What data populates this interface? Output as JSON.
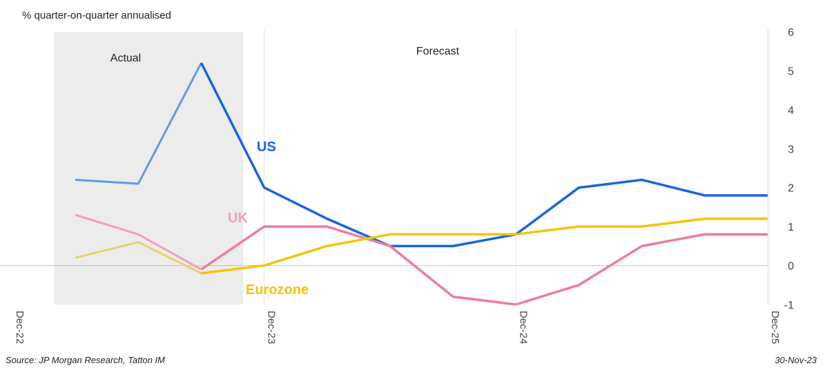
{
  "subtitle": "% quarter-on-quarter annualised",
  "source": "Source: JP Morgan Research, Tatton IM",
  "date_stamp": "30-Nov-23",
  "colors": {
    "us_actual": "#5b9be8",
    "us_forecast": "#1565e0",
    "uk_actual": "#f0a0b0",
    "uk_forecast": "#ee7d98",
    "eurozone_actual": "#e8d26a",
    "eurozone_forecast": "#f5c400",
    "shade": "#ececec",
    "zero_line": "#bfbfbf",
    "grid": "#e6e6e6"
  },
  "chart_data": {
    "type": "line",
    "x": [
      "Mar-23",
      "Jun-23",
      "Sep-23",
      "Dec-23",
      "Mar-24",
      "Jun-24",
      "Sep-24",
      "Dec-24",
      "Mar-25",
      "Jun-25",
      "Sep-25",
      "Dec-25"
    ],
    "x_ticks": [
      "Dec-22",
      "Dec-23",
      "Dec-24",
      "Dec-25"
    ],
    "y_ticks": [
      "6",
      "5",
      "4",
      "3",
      "2",
      "1",
      "0",
      "-1"
    ],
    "ylim": [
      -1,
      6
    ],
    "y_axis_side": "right",
    "shaded_region": {
      "label": "Actual",
      "from": "Feb-23",
      "to": "Nov-23"
    },
    "region_labels": {
      "actual": "Actual",
      "forecast": "Forecast"
    },
    "actual_end": "Sep-23",
    "series": [
      {
        "name": "US",
        "values": [
          2.2,
          2.1,
          5.2,
          2.0,
          1.2,
          0.5,
          0.5,
          0.8,
          2.0,
          2.2,
          1.8,
          1.8
        ]
      },
      {
        "name": "UK",
        "values": [
          1.3,
          0.8,
          -0.1,
          1.0,
          1.0,
          0.5,
          -0.8,
          -1.0,
          -0.5,
          0.5,
          0.8,
          0.8
        ]
      },
      {
        "name": "Eurozone",
        "values": [
          0.2,
          0.6,
          -0.2,
          0.0,
          0.5,
          0.8,
          0.8,
          0.8,
          1.0,
          1.0,
          1.2,
          1.2
        ]
      }
    ]
  }
}
